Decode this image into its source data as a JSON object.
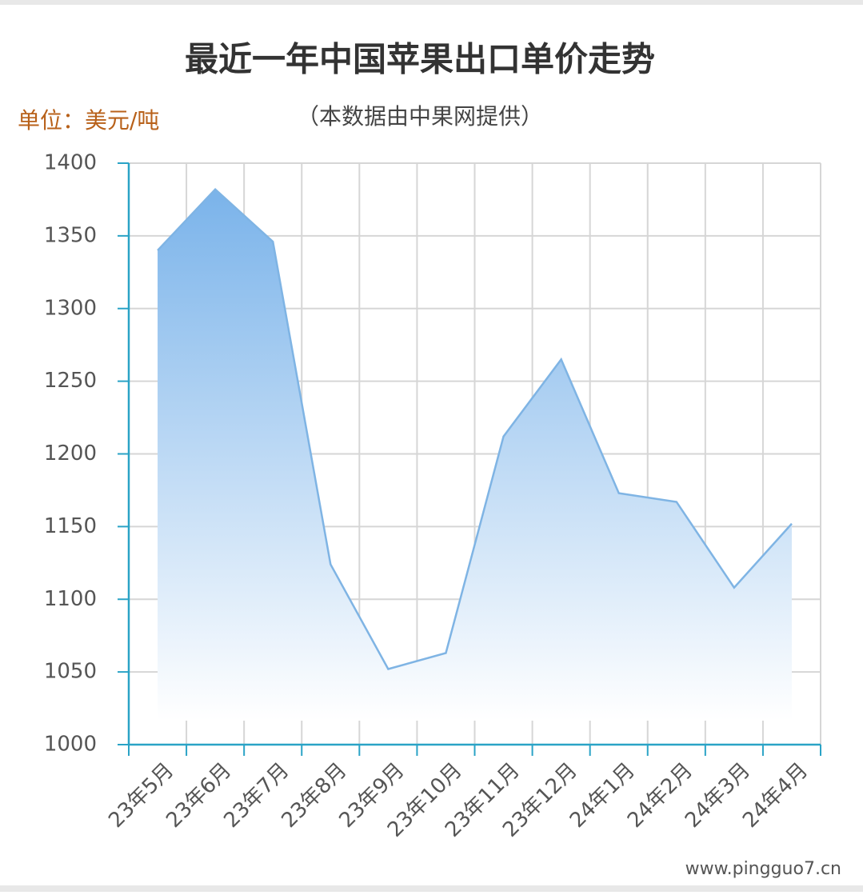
{
  "chart_data": {
    "type": "area",
    "title": "最近一年中国苹果出口单价走势",
    "subtitle": "（本数据由中果网提供）",
    "y_label": "单位：美元/吨",
    "watermark": "www.pingguo7.cn",
    "categories": [
      "23年5月",
      "23年6月",
      "23年7月",
      "23年8月",
      "23年9月",
      "23年10月",
      "23年11月",
      "23年12月",
      "24年1月",
      "24年2月",
      "24年3月",
      "24年4月"
    ],
    "values": [
      1340,
      1382,
      1346,
      1124,
      1052,
      1063,
      1212,
      1265,
      1173,
      1167,
      1108,
      1152
    ],
    "color": "#7fb4e4",
    "ylim": [
      1000,
      1400
    ],
    "yticks": [
      1000,
      1050,
      1100,
      1150,
      1200,
      1250,
      1300,
      1350,
      1400
    ],
    "grid": true
  }
}
